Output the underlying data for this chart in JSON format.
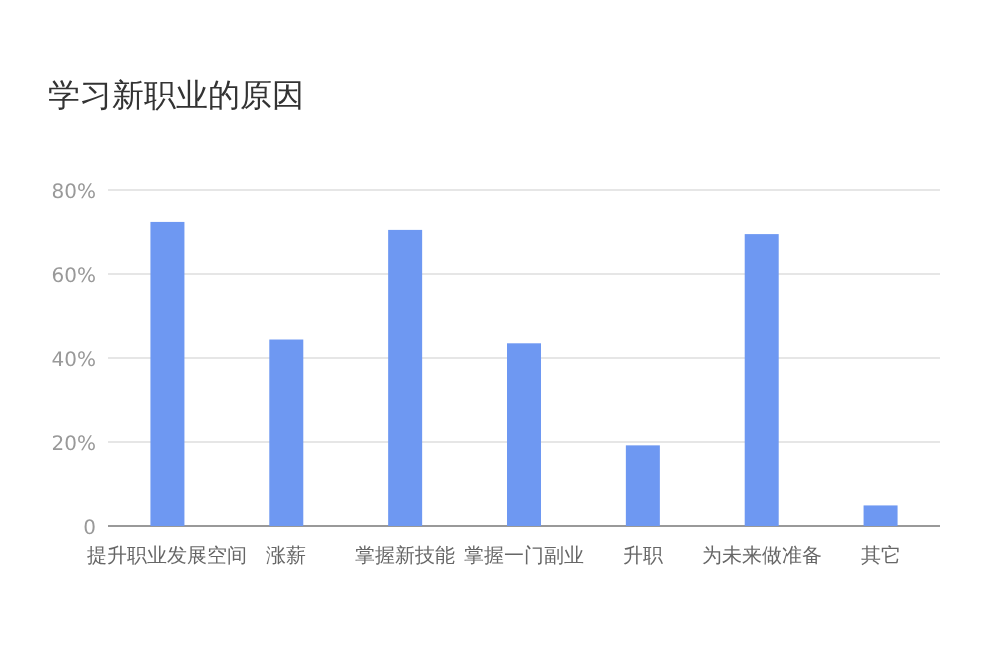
{
  "chart_data": {
    "type": "bar",
    "title": "学习新职业的原因",
    "categories": [
      "提升职业发展空间",
      "涨薪",
      "掌握新技能",
      "掌握一门副业",
      "升职",
      "为未来做准备",
      "其它"
    ],
    "values": [
      72.4,
      44.4,
      70.5,
      43.5,
      19.2,
      69.5,
      4.9
    ],
    "color": "#6e98f2",
    "ylim": [
      0,
      80
    ],
    "yticks": [
      0,
      {
        "value": 20,
        "label": "20%"
      },
      {
        "value": 40,
        "label": "40%"
      },
      {
        "value": 60,
        "label": "60%"
      },
      {
        "value": 80,
        "label": "80%"
      }
    ],
    "grid": "y"
  }
}
